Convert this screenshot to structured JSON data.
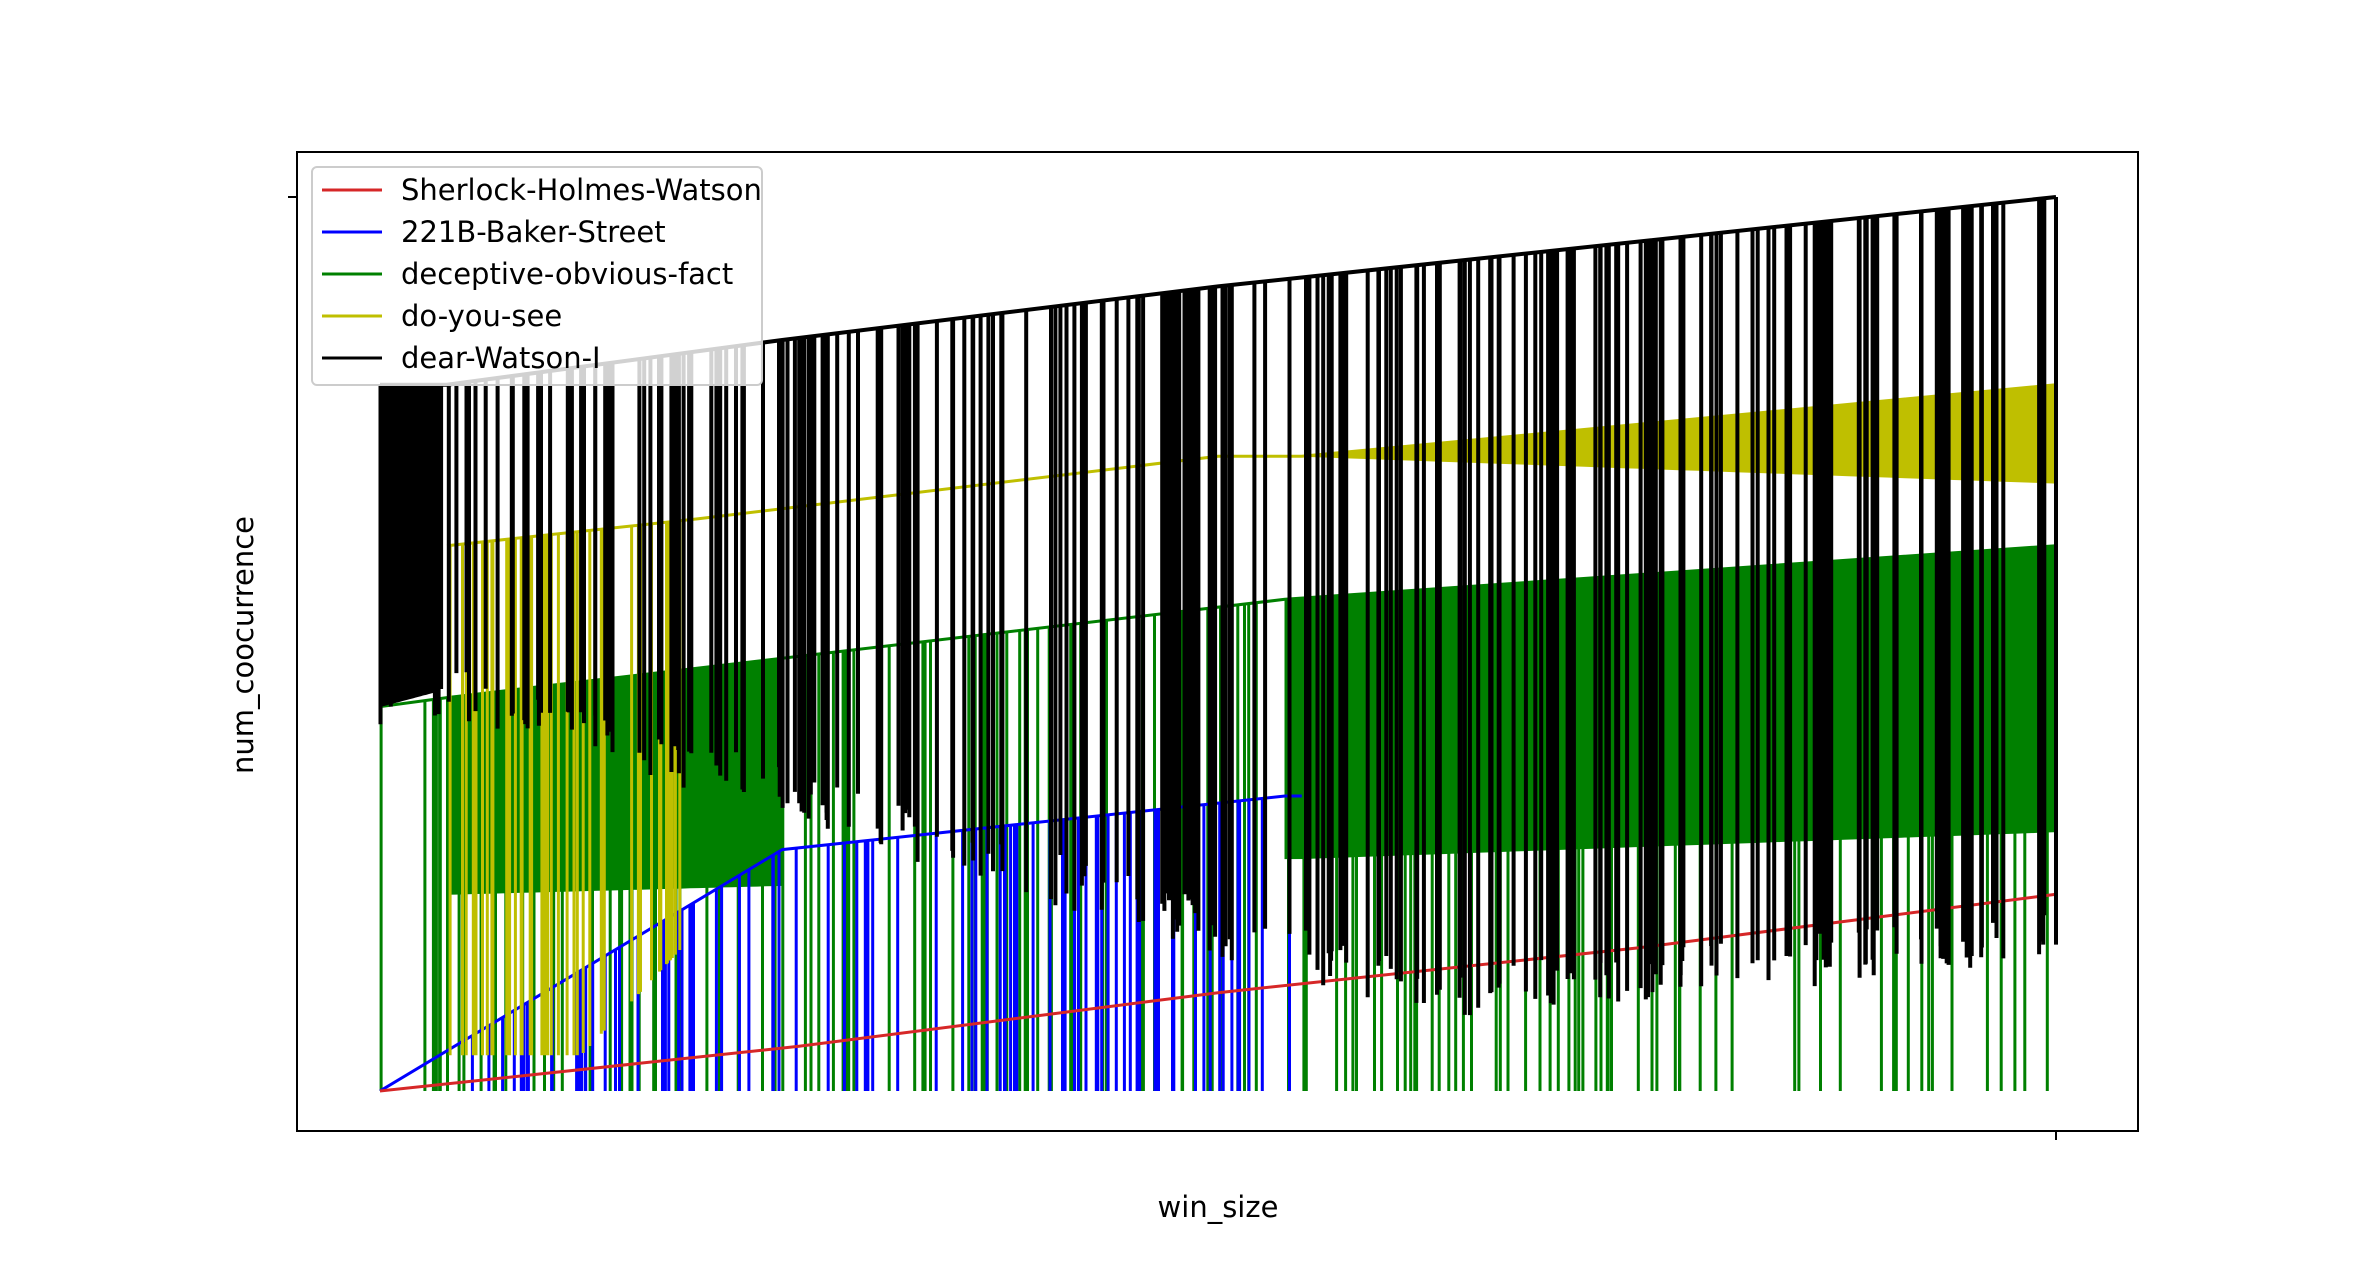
{
  "chart_data": {
    "type": "line",
    "title": "",
    "xlabel": "win_size",
    "ylabel": "num_coocurrence",
    "grid": false,
    "legend_position": "top-left",
    "x_range": [
      0,
      1
    ],
    "y_range": [
      0,
      1
    ],
    "tick_labels_shown": false,
    "series": [
      {
        "name": "Sherlock-Holmes-Watson",
        "color": "#d62728",
        "style": "trend",
        "envelope": [
          [
            0.0,
            0.0
          ],
          [
            0.25,
            0.05
          ],
          [
            0.5,
            0.11
          ],
          [
            0.75,
            0.16
          ],
          [
            1.0,
            0.22
          ]
        ]
      },
      {
        "name": "221B-Baker-Street",
        "color": "#0000ff",
        "style": "spikes",
        "envelope": [
          [
            0.0,
            0.0
          ],
          [
            0.24,
            0.27
          ],
          [
            0.54,
            0.33
          ],
          [
            0.55,
            0.33
          ]
        ],
        "base": 0.0
      },
      {
        "name": "deceptive-obvious-fact",
        "color": "#008000",
        "style": "spikes-band",
        "envelope": [
          [
            0.0,
            0.43
          ],
          [
            0.04,
            0.44
          ],
          [
            0.54,
            0.55
          ],
          [
            1.0,
            0.61
          ]
        ],
        "band_low": [
          [
            0.04,
            0.22
          ],
          [
            0.24,
            0.23
          ],
          [
            0.54,
            0.26
          ],
          [
            0.55,
            0.26
          ],
          [
            1.0,
            0.29
          ]
        ],
        "base": 0.0
      },
      {
        "name": "do-you-see",
        "color": "#bfbf00",
        "style": "spikes-band",
        "envelope": [
          [
            0.04,
            0.61
          ],
          [
            0.19,
            0.64
          ],
          [
            0.5,
            0.71
          ],
          [
            0.55,
            0.71
          ],
          [
            1.0,
            0.79
          ]
        ],
        "band_low": [
          [
            0.12,
            0.09
          ],
          [
            0.19,
            0.23
          ],
          [
            0.55,
            0.71
          ],
          [
            1.0,
            0.68
          ]
        ],
        "base": 0.0
      },
      {
        "name": "dear-Watson-I",
        "color": "#000000",
        "style": "spikes-band",
        "envelope": [
          [
            0.0,
            0.79
          ],
          [
            0.04,
            0.79
          ],
          [
            0.24,
            0.84
          ],
          [
            0.5,
            0.9
          ],
          [
            1.0,
            1.0
          ]
        ],
        "band_low": [
          [
            0.0,
            0.43
          ],
          [
            0.04,
            0.45
          ],
          [
            0.62,
            0.11
          ],
          [
            1.0,
            0.17
          ]
        ],
        "base": 0.0
      }
    ]
  }
}
